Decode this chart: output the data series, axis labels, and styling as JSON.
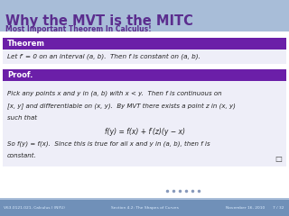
{
  "title": "Why the MVT is the MITC",
  "subtitle": "Most Important Theorem In Calculus!",
  "header_bg": "#A8BDD8",
  "title_color": "#5B2D8E",
  "subtitle_color": "#5B2D8E",
  "slide_bg": "#A8BDD8",
  "content_bg": "#EEEEF8",
  "white_bg": "#FFFFFF",
  "theorem_header_bg": "#6B1FA8",
  "theorem_header_text": "Theorem",
  "theorem_body": "Let f′ = 0 on an interval (a, b).  Then f is constant on (a, b).",
  "proof_header_bg": "#6B1FA8",
  "proof_header_text": "Proof.",
  "proof_line1": "Pick any points x and y in (a, b) with x < y.  Then f is continuous on",
  "proof_line2": "[x, y] and differentiable on (x, y).  By MVT there exists a point z in (x, y)",
  "proof_line3": "such that",
  "proof_formula": "f(y) = f(x) + f′(z)(y − x)",
  "proof_conclusion1": "So f(y) = f(x).  Since this is true for all x and y in (a, b), then f is",
  "proof_conclusion2": "constant.",
  "footer_bg": "#7090B8",
  "footer_left": "V63.0121.021, Calculus I (NYU)",
  "footer_center": "Section 4.2: The Shapes of Curves",
  "footer_right": "November 16, 2010",
  "footer_page": "7 / 32",
  "footer_text_color": "#DDEEFF",
  "nav_color": "#7090B8",
  "text_color": "#222222"
}
